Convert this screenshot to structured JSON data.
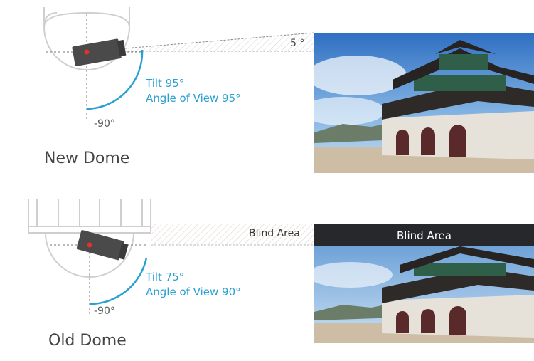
{
  "new_dome": {
    "tilt": "Tilt 95°",
    "angle_of_view": "Angle of View 95°",
    "min_angle": "-90°",
    "top_angle": "5 °",
    "title": "New Dome"
  },
  "old_dome": {
    "blind_area_label": "Blind Area",
    "tilt": "Tilt 75°",
    "angle_of_view": "Angle of View 90°",
    "min_angle": "-90°",
    "title": "Old Dome"
  },
  "photo_overlay": {
    "blind_area_label": "Blind Area"
  },
  "colors": {
    "accent_blue": "#2aa0d2",
    "camera_body": "#4a4a4a",
    "lens_dot": "#e8302a",
    "housing": "#cfcfcf",
    "blind_bar": "#26282b"
  }
}
